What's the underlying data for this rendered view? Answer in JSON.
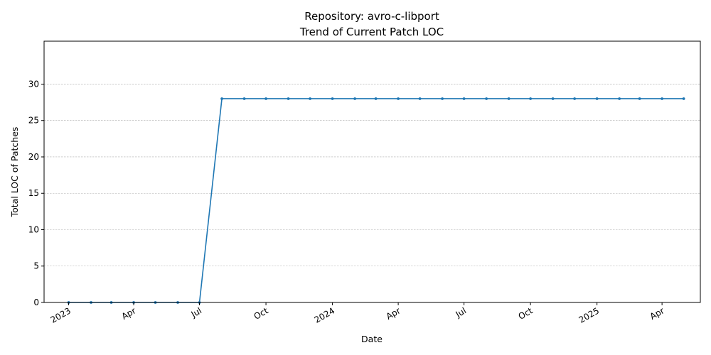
{
  "chart_data": {
    "type": "line",
    "title_line1": "Repository: avro-c-libport",
    "title_line2": "Trend of Current Patch LOC",
    "xlabel": "Date",
    "ylabel": "Total LOC of Patches",
    "ylim": [
      0,
      35.9
    ],
    "yticks": [
      0,
      5,
      10,
      15,
      20,
      25,
      30
    ],
    "xlim": [
      "2022-11-28",
      "2025-05-24"
    ],
    "xticks": [
      {
        "date": "2023-01-01",
        "label": "2023"
      },
      {
        "date": "2023-04-01",
        "label": "Apr"
      },
      {
        "date": "2023-07-01",
        "label": "Jul"
      },
      {
        "date": "2023-10-01",
        "label": "Oct"
      },
      {
        "date": "2024-01-01",
        "label": "2024"
      },
      {
        "date": "2024-04-01",
        "label": "Apr"
      },
      {
        "date": "2024-07-01",
        "label": "Jul"
      },
      {
        "date": "2024-10-01",
        "label": "Oct"
      },
      {
        "date": "2025-01-01",
        "label": "2025"
      },
      {
        "date": "2025-04-01",
        "label": "Apr"
      }
    ],
    "grid": "y",
    "color": "#1f77b4",
    "x": [
      "2023-01-01",
      "2023-02-01",
      "2023-03-01",
      "2023-04-01",
      "2023-05-01",
      "2023-06-01",
      "2023-07-01",
      "2023-08-01",
      "2023-09-01",
      "2023-10-01",
      "2023-11-01",
      "2023-12-01",
      "2024-01-01",
      "2024-02-01",
      "2024-03-01",
      "2024-04-01",
      "2024-05-01",
      "2024-06-01",
      "2024-07-01",
      "2024-08-01",
      "2024-09-01",
      "2024-10-01",
      "2024-11-01",
      "2024-12-01",
      "2025-01-01",
      "2025-02-01",
      "2025-03-01",
      "2025-04-01",
      "2025-05-01"
    ],
    "values": [
      0,
      0,
      0,
      0,
      0,
      0,
      0,
      28,
      28,
      28,
      28,
      28,
      28,
      28,
      28,
      28,
      28,
      28,
      28,
      28,
      28,
      28,
      28,
      28,
      28,
      28,
      28,
      28,
      28
    ]
  }
}
